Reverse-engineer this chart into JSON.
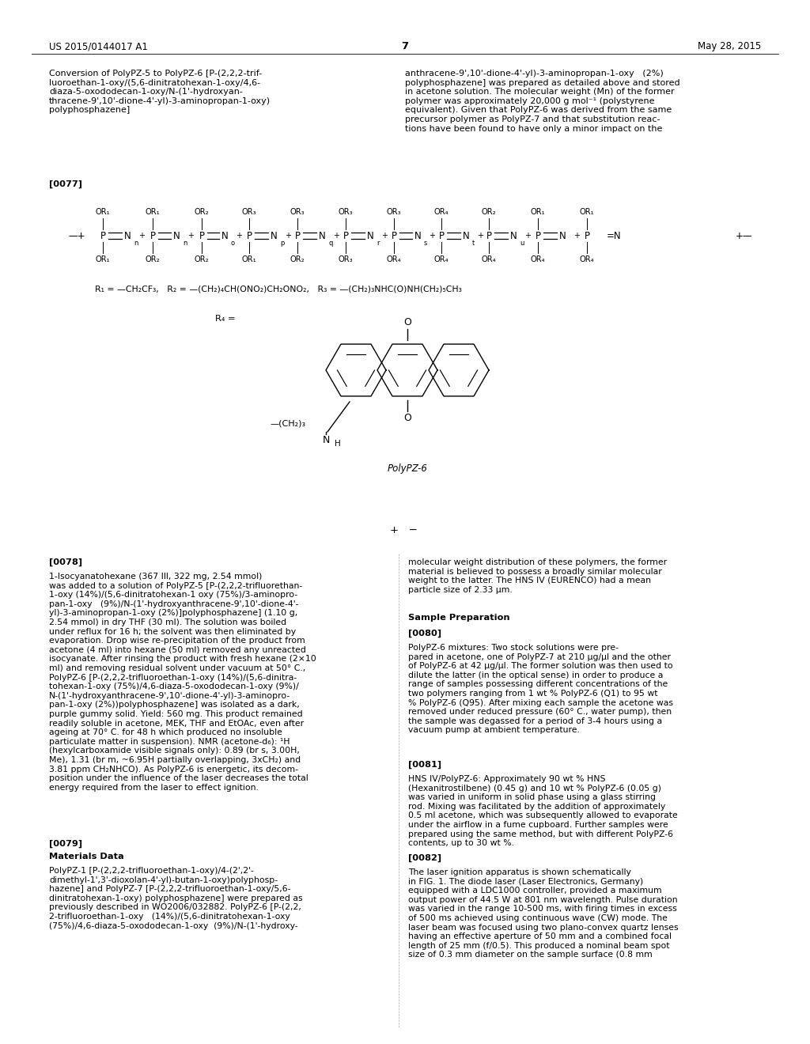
{
  "background_color": "#ffffff",
  "header_left": "US 2015/0144017 A1",
  "header_center": "7",
  "header_right": "May 28, 2015",
  "left_title": "Conversion of PolyPZ-5 to PolyPZ-6 [P-(2,2,2-trif-\nluoroethan-1-oxy/(5,6-dinitratohexan-1-oxy/4,6-\ndiaza-5-oxododecan-1-oxy/N-(1'-hydroxyan-\nthracene-9',10'-dione-4'-yl)-3-aminopropan-1-oxy)\npolyphosphazene]",
  "right_text_077": "anthracene-9',10'-dione-4'-yl)-3-aminopropan-1-oxy   (2%)\npolyphosphazene] was prepared as detailed above and stored\nin acetone solution. The molecular weight (Mn) of the former\npolymer was approximately 20,000 g mol⁻¹ (polystyrene\nequivalent). Given that PolyPZ-6 was derived from the same\nprecursor polymer as PolyPZ-7 and that substitution reac-\ntions have been found to have only a minor impact on the",
  "para_077": "[0077]",
  "polymer_label": "PolyPZ-6",
  "r_definitions": "R₁ = —CH₂CF₃,   R₂ = —(CH₂)₄CH(ONO₂)CH₂ONO₂,   R₃ = —(CH₂)₃NHC(O)NH(CH₂)₅CH₃",
  "r4_label": "R₄ =",
  "or_top": [
    "OR₁",
    "OR₁",
    "OR₂",
    "OR₃",
    "OR₃",
    "OR₃",
    "OR₃",
    "OR₄",
    "OR₂",
    "OR₁"
  ],
  "or_bot": [
    "OR₁",
    "OR₂",
    "OR₂",
    "OR₁",
    "OR₂",
    "OR₃",
    "OR₄",
    "OR₄",
    "OR₄",
    "OR₄"
  ],
  "subscripts": [
    "n",
    "n",
    "o",
    "p",
    "q",
    "r",
    "s",
    "t",
    "u",
    ""
  ],
  "body_0078": "1-Isocyanatohexane (367 Ill, 322 mg, 2.54 mmol)\nwas added to a solution of PolyPZ-5 [P-(2,2,2-trifluorethan-\n1-oxy (14%)/(5,6-dinitratohexan-1 oxy (75%)/3-aminopro-\npan-1-oxy   (9%)/N-(1'-hydroxyanthracene-9',10'-dione-4'-\nyl)-3-aminopropan-1-oxy (2%)]polyphosphazene] (1.10 g,\n2.54 mmol) in dry THF (30 ml). The solution was boiled\nunder reflux for 16 h; the solvent was then eliminated by\nevaporation. Drop wise re-precipitation of the product from\nacetone (4 ml) into hexane (50 ml) removed any unreacted\nisocyanate. After rinsing the product with fresh hexane (2×10\nml) and removing residual solvent under vacuum at 50° C.,\nPolyPZ-6 [P-(2,2,2-trifluoroethan-1-oxy (14%)/(5,6-dinitra-\ntohexan-1-oxy (75%)/4,6-diaza-5-oxododecan-1-oxy (9%)/\nN-(1'-hydroxyanthracene-9',10'-dione-4'-yl)-3-aminopro-\npan-1-oxy (2%))polyphosphazene] was isolated as a dark,\npurple gummy solid. Yield: 560 mg. This product remained\nreadily soluble in acetone, MEK, THF and EtOAc, even after\nageing at 70° C. for 48 h which produced no insoluble\nparticulate matter in suspension). NMR (acetone-d₆): ¹H\n(hexylcarboxamide visible signals only): 0.89 (br s, 3.00H,\nMe), 1.31 (br m, ~6.95H partially overlapping, 3xCH₂) and\n3.81 ppm CH₂NHCO). As PolyPZ-6 is energetic, its decom-\nposition under the influence of the laser decreases the total\nenergy required from the laser to effect ignition.",
  "label_0078": "[0078]",
  "label_0079": "[0079]",
  "materials_data_title": "Materials Data",
  "body_0079": "PolyPZ-1 [P-(2,2,2-trifluoroethan-1-oxy)/4-(2',2'-\ndimethyl-1',3'-dioxolan-4'-yl)-butan-1-oxy)polyphosp-\nhazene] and PolyPZ-7 [P-(2,2,2-trifluoroethan-1-oxy/5,6-\ndinitratohexan-1-oxy) polyphosphazene] were prepared as\npreviously described in WO2006/032882. PolyPZ-6 [P-(2,2,\n2-trifluoroethan-1-oxy   (14%)/(5,6-dinitratohexan-1-oxy\n(75%)/4,6-diaza-5-oxododecan-1-oxy  (9%)/N-(1'-hydroxy-",
  "body_right_0078": "molecular weight distribution of these polymers, the former\nmaterial is believed to possess a broadly similar molecular\nweight to the latter. The HNS IV (EURENCO) had a mean\nparticle size of 2.33 μm.",
  "sample_prep_title": "Sample Preparation",
  "label_0080": "[0080]",
  "body_0080": "PolyPZ-6 mixtures: Two stock solutions were pre-\npared in acetone, one of PolyPZ-7 at 210 μg/μl and the other\nof PolyPZ-6 at 42 μg/μl. The former solution was then used to\ndilute the latter (in the optical sense) in order to produce a\nrange of samples possessing different concentrations of the\ntwo polymers ranging from 1 wt % PolyPZ-6 (Q1) to 95 wt\n% PolyPZ-6 (Q95). After mixing each sample the acetone was\nremoved under reduced pressure (60° C., water pump), then\nthe sample was degassed for a period of 3-4 hours using a\nvacuum pump at ambient temperature.",
  "label_0081": "[0081]",
  "body_0081": "HNS IV/PolyPZ-6: Approximately 90 wt % HNS\n(Hexanitrostilbene) (0.45 g) and 10 wt % PolyPZ-6 (0.05 g)\nwas varied in uniform in solid phase using a glass stirring\nrod. Mixing was facilitated by the addition of approximately\n0.5 ml acetone, which was subsequently allowed to evaporate\nunder the airflow in a fume cupboard. Further samples were\nprepared using the same method, but with different PolyPZ-6\ncontents, up to 30 wt %.",
  "label_0082": "[0082]",
  "body_0082": "The laser ignition apparatus is shown schematically\nin FIG. 1. The diode laser (Laser Electronics, Germany)\nequipped with a LDC1000 controller, provided a maximum\noutput power of 44.5 W at 801 nm wavelength. Pulse duration\nwas varied in the range 10-500 ms, with firing times in excess\nof 500 ms achieved using continuous wave (CW) mode. The\nlaser beam was focused using two plano-convex quartz lenses\nhaving an effective aperture of 50 mm and a combined focal\nlength of 25 mm (f/0.5). This produced a nominal beam spot\nsize of 0.3 mm diameter on the sample surface (0.8 mm"
}
